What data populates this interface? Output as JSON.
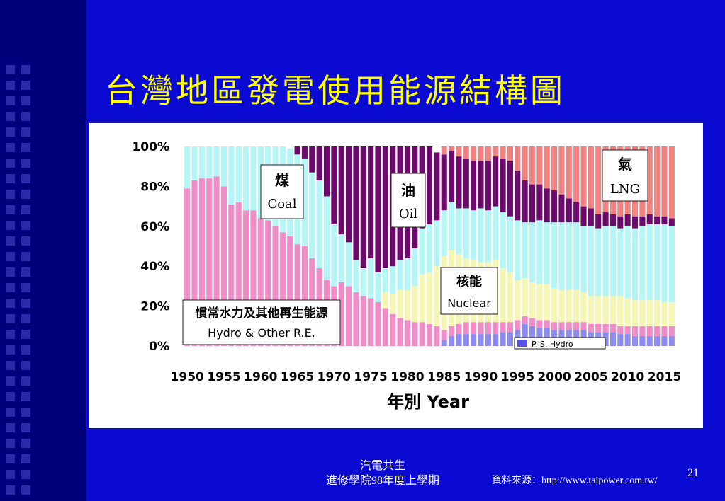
{
  "slide": {
    "title": "台灣地區發電使用能源結構圖",
    "footer_line1": "汽電共生",
    "footer_line2": "進修學院98年度上學期",
    "source": "資料來源：http://www.taipower.com.tw/",
    "page_number": "21"
  },
  "colors": {
    "background": "#0a0ad2",
    "title": "#ffff00",
    "hydro": "#f08cc8",
    "coal": "#b4f5f5",
    "oil": "#6e0a6e",
    "nuclear": "#f5f5b4",
    "lng": "#f08282",
    "ps_hydro": "#8c8cf0"
  },
  "chart_data": {
    "type": "area",
    "stacked": true,
    "percent": true,
    "xlabel": "年別 Year",
    "ylim": [
      0,
      100
    ],
    "yticks": [
      "0%",
      "20%",
      "40%",
      "60%",
      "80%",
      "100%"
    ],
    "xticks": [
      "1950",
      "1955",
      "1960",
      "1965",
      "1970",
      "1975",
      "1980",
      "1985",
      "1990",
      "1995",
      "2000",
      "2005",
      "2010",
      "2015"
    ],
    "x": [
      1950,
      1951,
      1952,
      1953,
      1954,
      1955,
      1956,
      1957,
      1958,
      1959,
      1960,
      1961,
      1962,
      1963,
      1964,
      1965,
      1966,
      1967,
      1968,
      1969,
      1970,
      1971,
      1972,
      1973,
      1974,
      1975,
      1976,
      1977,
      1978,
      1979,
      1980,
      1981,
      1982,
      1983,
      1984,
      1985,
      1986,
      1987,
      1988,
      1989,
      1990,
      1991,
      1992,
      1993,
      1994,
      1995,
      1996,
      1997,
      1998,
      1999,
      2000,
      2001,
      2002,
      2003,
      2004,
      2005,
      2006,
      2007,
      2008,
      2009,
      2010,
      2011,
      2012,
      2013,
      2014,
      2015,
      2016
    ],
    "series": [
      {
        "key": "ps_hydro",
        "values": [
          0,
          0,
          0,
          0,
          0,
          0,
          0,
          0,
          0,
          0,
          0,
          0,
          0,
          0,
          0,
          0,
          0,
          0,
          0,
          0,
          0,
          0,
          0,
          0,
          0,
          0,
          0,
          0,
          0,
          0,
          0,
          0,
          0,
          0,
          0,
          3,
          5,
          6,
          6,
          6,
          6,
          6,
          6,
          7,
          7,
          8,
          11,
          10,
          9,
          9,
          8,
          8,
          8,
          8,
          8,
          7,
          7,
          7,
          7,
          6,
          6,
          5,
          5,
          5,
          5,
          5,
          5
        ]
      },
      {
        "key": "hydro",
        "values": [
          79,
          83,
          84,
          84,
          85,
          80,
          71,
          72,
          68,
          68,
          64,
          63,
          60,
          57,
          55,
          51,
          50,
          44,
          39,
          33,
          30,
          32,
          30,
          27,
          25,
          24,
          22,
          19,
          16,
          14,
          13,
          12,
          12,
          11,
          10,
          5,
          5,
          5,
          6,
          6,
          6,
          6,
          6,
          5,
          5,
          5,
          4,
          4,
          4,
          4,
          4,
          4,
          4,
          4,
          4,
          4,
          4,
          4,
          4,
          4,
          4,
          5,
          5,
          5,
          5,
          5,
          5
        ]
      },
      {
        "key": "nuclear",
        "values": [
          0,
          0,
          0,
          0,
          0,
          0,
          0,
          0,
          0,
          0,
          0,
          0,
          0,
          0,
          0,
          0,
          0,
          0,
          0,
          0,
          0,
          0,
          0,
          0,
          0,
          0,
          0,
          8,
          10,
          14,
          15,
          18,
          24,
          26,
          30,
          37,
          38,
          35,
          32,
          31,
          30,
          30,
          31,
          27,
          25,
          20,
          19,
          18,
          18,
          18,
          17,
          16,
          16,
          16,
          15,
          14,
          14,
          14,
          14,
          15,
          14,
          13,
          13,
          13,
          13,
          12,
          12
        ]
      },
      {
        "key": "coal",
        "values": [
          21,
          17,
          16,
          16,
          15,
          20,
          29,
          28,
          32,
          32,
          36,
          37,
          40,
          43,
          44,
          45,
          44,
          43,
          44,
          42,
          31,
          24,
          22,
          16,
          14,
          20,
          15,
          12,
          14,
          15,
          16,
          19,
          23,
          24,
          23,
          23,
          24,
          23,
          25,
          25,
          27,
          26,
          27,
          28,
          28,
          30,
          28,
          30,
          32,
          31,
          33,
          34,
          34,
          34,
          33,
          35,
          34,
          35,
          35,
          34,
          36,
          36,
          37,
          38,
          38,
          39,
          38
        ]
      },
      {
        "key": "oil",
        "values": [
          0,
          0,
          0,
          0,
          0,
          0,
          0,
          0,
          0,
          0,
          0,
          0,
          0,
          0,
          0,
          4,
          6,
          13,
          17,
          25,
          39,
          44,
          48,
          57,
          61,
          56,
          63,
          61,
          60,
          57,
          56,
          51,
          41,
          39,
          34,
          28,
          26,
          26,
          25,
          25,
          24,
          25,
          25,
          27,
          28,
          25,
          21,
          19,
          18,
          17,
          16,
          14,
          12,
          10,
          10,
          9,
          7,
          7,
          6,
          6,
          6,
          6,
          5,
          5,
          4,
          4,
          4
        ]
      },
      {
        "key": "lng",
        "values": [
          0,
          0,
          0,
          0,
          0,
          0,
          0,
          0,
          0,
          0,
          0,
          0,
          0,
          0,
          0,
          0,
          0,
          0,
          0,
          0,
          0,
          0,
          0,
          0,
          0,
          0,
          0,
          0,
          0,
          0,
          0,
          0,
          0,
          0,
          0,
          4,
          2,
          5,
          6,
          7,
          7,
          7,
          5,
          6,
          7,
          12,
          17,
          19,
          19,
          21,
          22,
          24,
          26,
          28,
          30,
          31,
          34,
          33,
          34,
          35,
          34,
          35,
          35,
          34,
          35,
          35,
          36
        ]
      }
    ],
    "labels": {
      "coal_cn": "煤",
      "coal_en": "Coal",
      "oil_cn": "油",
      "oil_en": "Oil",
      "lng_cn": "氣",
      "lng_en": "LNG",
      "nuclear_cn": "核能",
      "nuclear_en": "Nuclear",
      "hydro_cn": "慣常水力及其他再生能源",
      "hydro_en": "Hydro & Other R.E.",
      "ps_hydro": "P. S. Hydro"
    }
  }
}
